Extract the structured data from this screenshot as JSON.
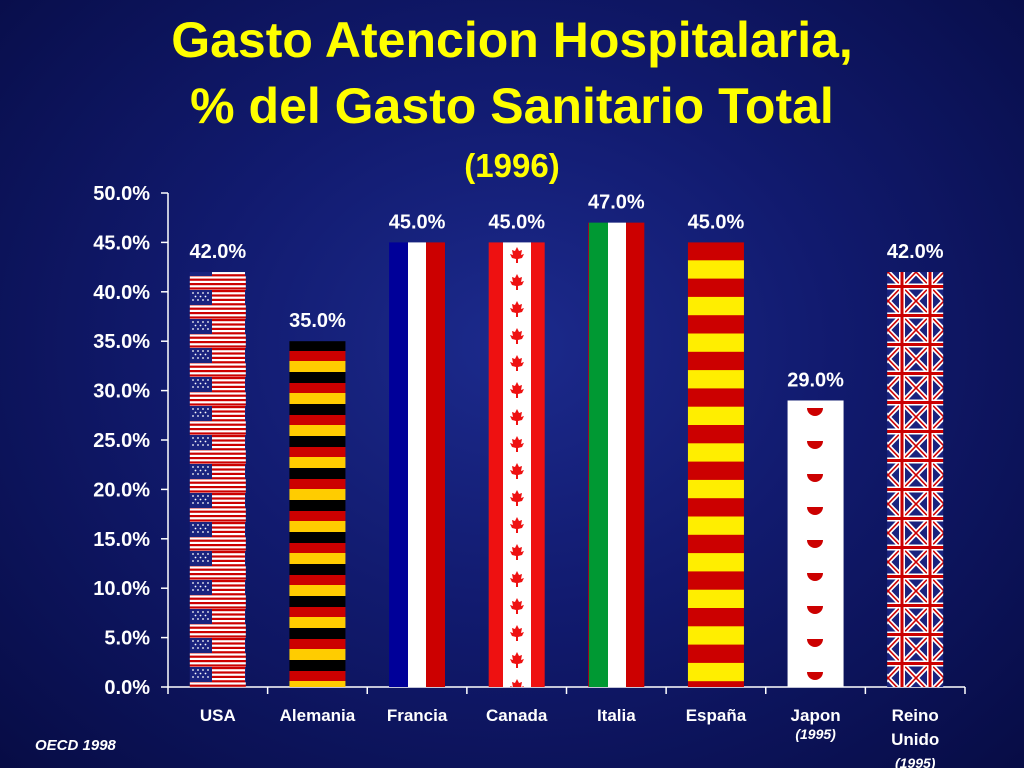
{
  "header": {
    "title_line1": "Gasto Atencion Hospitalaria,",
    "title_line2": "% del Gasto Sanitario Total",
    "title_line3": "(1996)"
  },
  "footer": {
    "source": "OECD 1998"
  },
  "colors": {
    "background": "#111a6e",
    "title": "#ffff00",
    "text": "#ffffff",
    "axis": "#ffffff"
  },
  "chart_data": {
    "type": "bar",
    "title": "Gasto Atencion Hospitalaria, % del Gasto Sanitario Total (1996)",
    "xlabel": "",
    "ylabel": "",
    "ylim": [
      0,
      50
    ],
    "yticks": [
      "0.0%",
      "5.0%",
      "10.0%",
      "15.0%",
      "20.0%",
      "25.0%",
      "30.0%",
      "35.0%",
      "40.0%",
      "45.0%",
      "50.0%"
    ],
    "grid": false,
    "categories": [
      {
        "label": "USA",
        "note": "",
        "value": 42.0,
        "data_label": "42.0%",
        "pattern": "us-flag"
      },
      {
        "label": "Alemania",
        "note": "",
        "value": 35.0,
        "data_label": "35.0%",
        "pattern": "germany-flag"
      },
      {
        "label": "Francia",
        "note": "",
        "value": 45.0,
        "data_label": "45.0%",
        "pattern": "france-flag"
      },
      {
        "label": "Canada",
        "note": "",
        "value": 45.0,
        "data_label": "45.0%",
        "pattern": "canada-flag"
      },
      {
        "label": "Italia",
        "note": "",
        "value": 47.0,
        "data_label": "47.0%",
        "pattern": "italy-flag"
      },
      {
        "label": "España",
        "note": "",
        "value": 45.0,
        "data_label": "45.0%",
        "pattern": "spain-flag"
      },
      {
        "label": "Japon",
        "note": "(1995)",
        "value": 29.0,
        "data_label": "29.0%",
        "pattern": "japan-flag"
      },
      {
        "label": "Reino\nUnido",
        "note": "(1995)",
        "value": 42.0,
        "data_label": "42.0%",
        "pattern": "uk-flag"
      }
    ]
  }
}
